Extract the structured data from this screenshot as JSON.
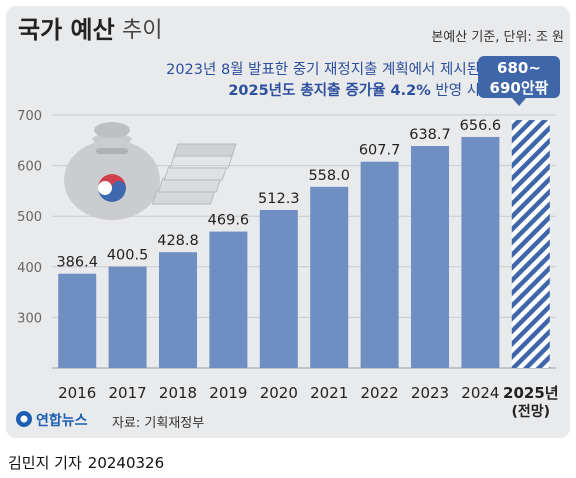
{
  "header": {
    "title_main": "국가 예산",
    "title_sub": "추이",
    "unit_note": "본예산 기준, 단위: 조 원"
  },
  "annotation": {
    "line1": "2023년 8월 발표한 중기 재정지출 계획에서 제시된",
    "line2_bold": "2025년도 총지출 증가율 4.2%",
    "line2_rest": " 반영 시"
  },
  "callout": {
    "line1": "680~",
    "line2": "690안팎"
  },
  "footer": {
    "logo_text": "연합뉴스",
    "source": "자료: 기획재정부",
    "byline": "김민지 기자",
    "date": "20240326"
  },
  "colors": {
    "bar": "#6f8fc3",
    "projection": "#3f66a8",
    "grid": "#c9cacd",
    "annotation": "#2c4f9e"
  },
  "chart_data": {
    "type": "bar",
    "categories": [
      "2016",
      "2017",
      "2018",
      "2019",
      "2020",
      "2021",
      "2022",
      "2023",
      "2024",
      "2025년"
    ],
    "category_sublabels": [
      "",
      "",
      "",
      "",
      "",
      "",
      "",
      "",
      "",
      "(전망)"
    ],
    "values": [
      386.4,
      400.5,
      428.8,
      469.6,
      512.3,
      558.0,
      607.7,
      638.7,
      656.6,
      null
    ],
    "value_labels": [
      "386.4",
      "400.5",
      "428.8",
      "469.6",
      "512.3",
      "558.0",
      "607.7",
      "638.7",
      "656.6",
      ""
    ],
    "projection": {
      "category": "2025년",
      "range": [
        680,
        690
      ],
      "label": "680~690안팎",
      "style": "hatched"
    },
    "yticks": [
      300,
      400,
      500,
      600,
      700
    ],
    "ylim": [
      200,
      700
    ],
    "grid": true,
    "title": "국가 예산 추이",
    "xlabel": "",
    "ylabel": ""
  }
}
